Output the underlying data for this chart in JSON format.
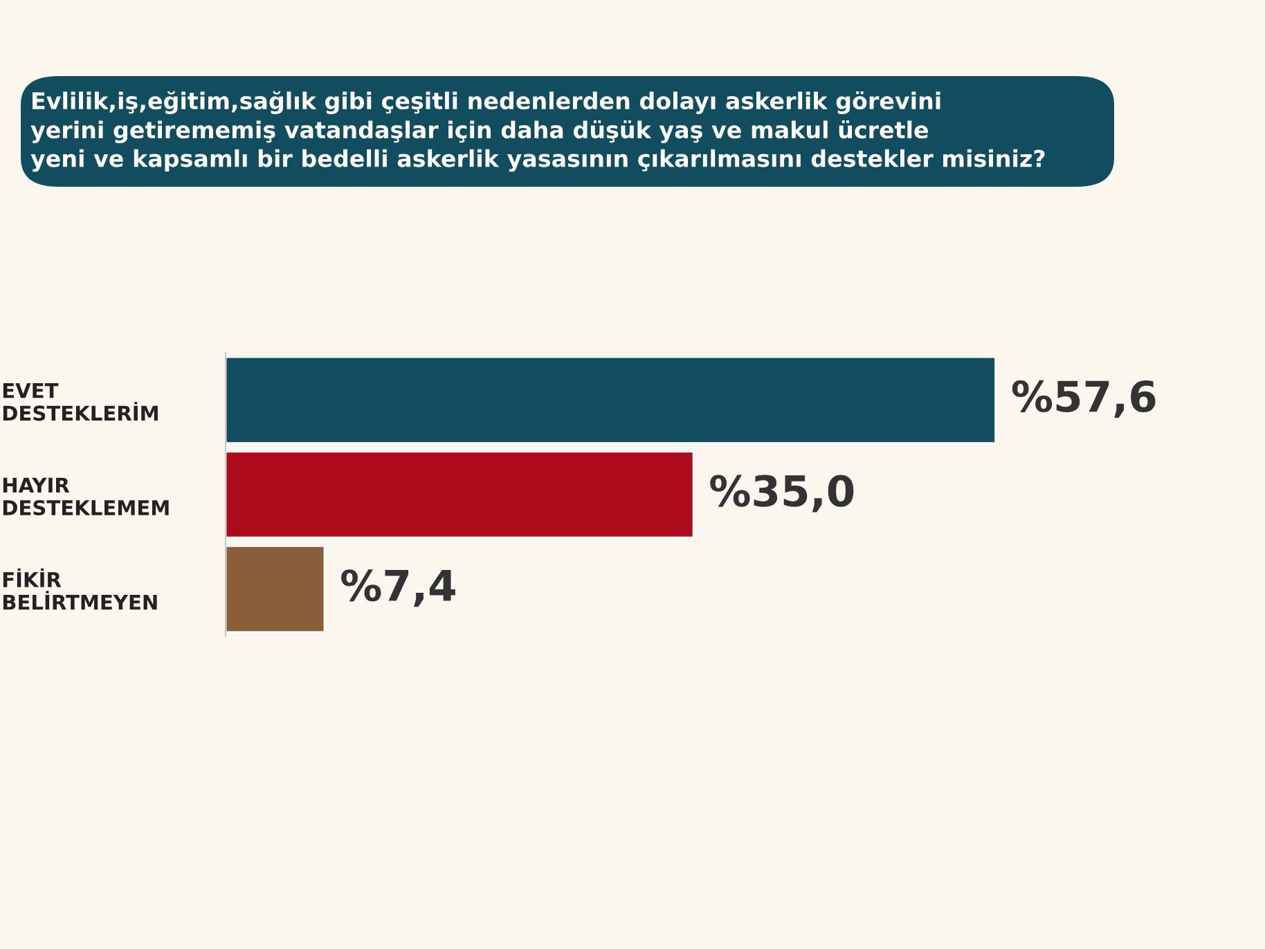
{
  "chart_data": {
    "type": "bar",
    "orientation": "horizontal",
    "title": "Evlilik,iş,eğitim,sağlık gibi çeşitli nedenlerden dolayı askerlik görevini\nyerini getirememiş vatandaşlar için daha düşük yaş ve makul ücretle\nyeni ve kapsamlı bir bedelli askerlik yasasının çıkarılmasını destekler misiniz?",
    "categories": [
      "EVET\nDESTEKLERİM",
      "HAYIR\nDESTEKLEMEM",
      "FİKİR\nBELİRTMEYEN"
    ],
    "values": [
      57.6,
      35.0,
      7.4
    ],
    "colors": [
      "#124c5f",
      "#ab0b1b",
      "#8b5e3a"
    ],
    "value_labels": [
      "%57,6",
      "%35,0",
      "%7,4"
    ]
  }
}
